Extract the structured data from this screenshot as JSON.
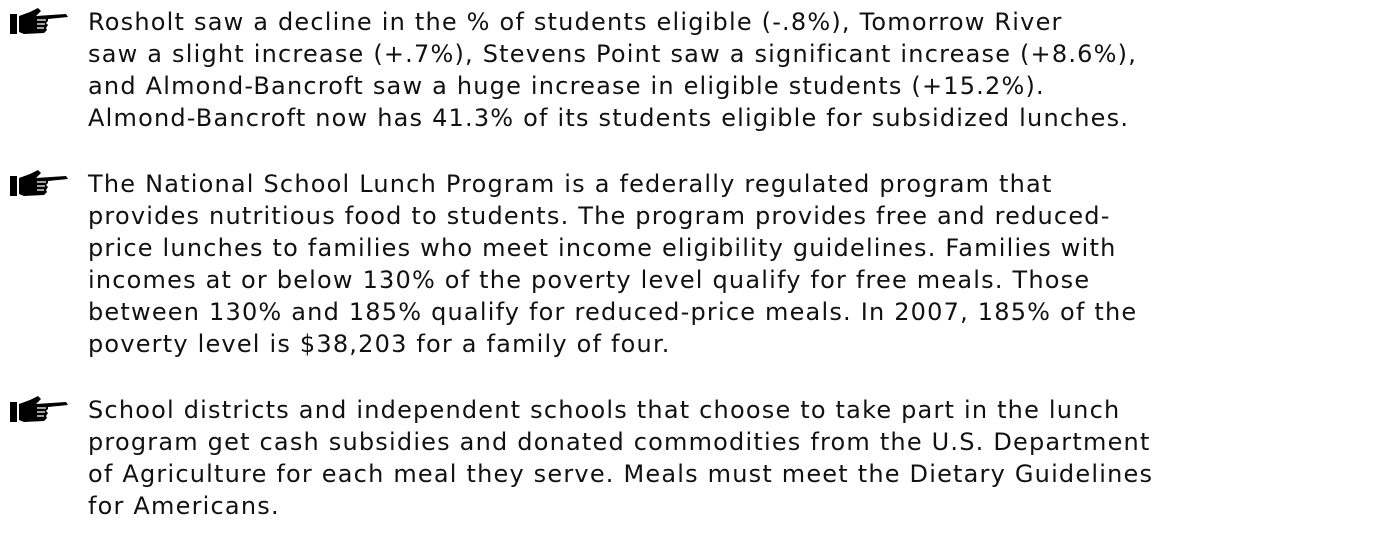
{
  "bullets": [
    {
      "lines": [
        "Rosholt saw a decline in the % of students eligible (-.8%), Tomorrow River",
        "saw a slight increase (+.7%), Stevens Point saw a significant increase (+8.6%),",
        "and Almond-Bancroft saw a huge increase in eligible students (+15.2%).",
        "Almond-Bancroft now has 41.3% of its students eligible for subsidized lunches."
      ]
    },
    {
      "lines": [
        "The National School Lunch Program is a federally regulated program that",
        "provides nutritious food to students. The program provides free and reduced-",
        "price lunches to families who meet income eligibility guidelines. Families with",
        "incomes at or below 130% of the poverty level qualify for free meals. Those",
        "between 130% and 185% qualify for reduced-price meals. In 2007, 185% of the",
        "poverty level is $38,203 for a family of four."
      ]
    },
    {
      "lines": [
        "School districts and independent schools that choose to take part in the lunch",
        "program get cash subsidies and donated commodities from the U.S. Department",
        "of Agriculture for each meal they serve. Meals must meet the Dietary Guidelines",
        "for Americans."
      ]
    }
  ]
}
